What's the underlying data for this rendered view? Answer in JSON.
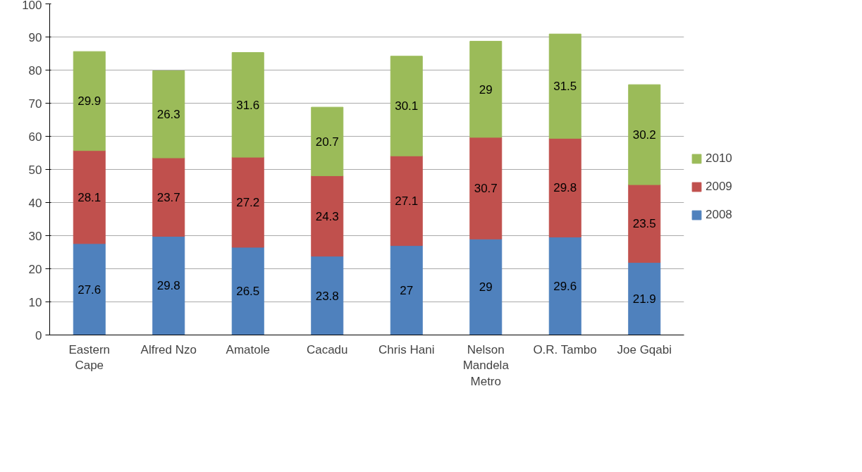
{
  "chart_data": {
    "type": "bar",
    "stacked": true,
    "categories": [
      "Eastern Cape",
      "Alfred Nzo",
      "Amatole",
      "Cacadu",
      "Chris Hani",
      "Nelson Mandela Metro",
      "O.R. Tambo",
      "Joe Gqabi"
    ],
    "series": [
      {
        "name": "2008",
        "color": "#4f81bd",
        "values": [
          27.6,
          29.8,
          26.5,
          23.8,
          27,
          29,
          29.6,
          21.9
        ]
      },
      {
        "name": "2009",
        "color": "#c0504d",
        "values": [
          28.1,
          23.7,
          27.2,
          24.3,
          27.1,
          30.7,
          29.8,
          23.5
        ]
      },
      {
        "name": "2010",
        "color": "#9bbb59",
        "values": [
          29.9,
          26.3,
          31.6,
          20.7,
          30.1,
          29,
          31.5,
          30.2
        ]
      }
    ],
    "ylim": [
      0,
      100
    ],
    "yticks": [
      0,
      10,
      20,
      30,
      40,
      50,
      60,
      70,
      80,
      90,
      100
    ],
    "grid": "y",
    "legend": "right",
    "data_labels": true
  }
}
